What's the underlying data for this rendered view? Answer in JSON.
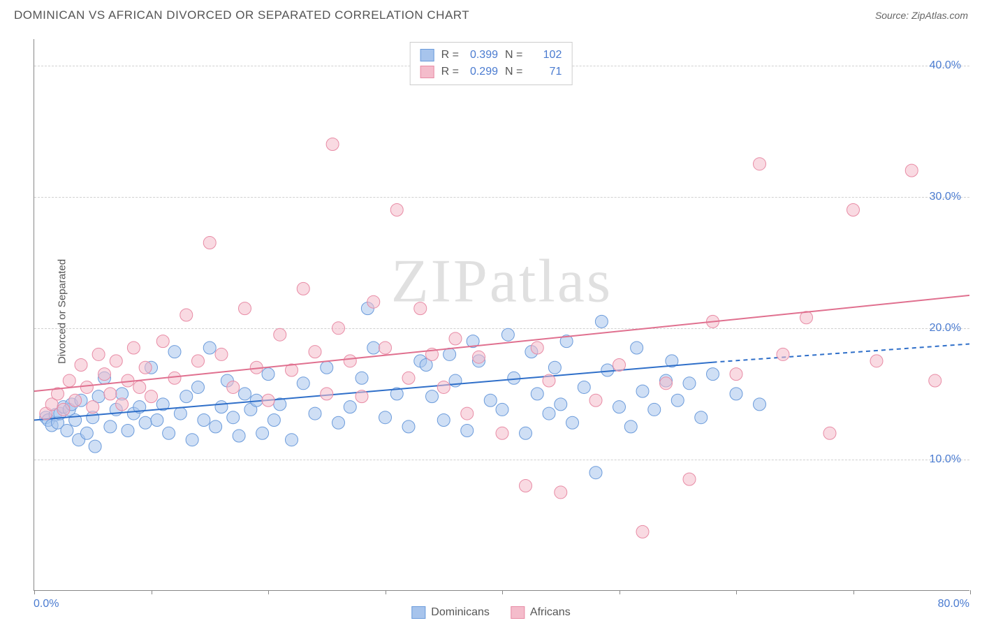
{
  "title": "DOMINICAN VS AFRICAN DIVORCED OR SEPARATED CORRELATION CHART",
  "source_label": "Source: ZipAtlas.com",
  "y_axis_label": "Divorced or Separated",
  "watermark": "ZIPatlas",
  "chart": {
    "type": "scatter",
    "xlim": [
      0,
      80
    ],
    "ylim": [
      0,
      42
    ],
    "x_ticks": [
      0,
      10,
      20,
      30,
      40,
      50,
      60,
      70,
      80
    ],
    "x_tick_labels": {
      "0": "0.0%",
      "80": "80.0%"
    },
    "y_gridlines": [
      10,
      20,
      30,
      40
    ],
    "y_tick_labels": {
      "10": "10.0%",
      "20": "20.0%",
      "30": "30.0%",
      "40": "40.0%"
    },
    "background_color": "#ffffff",
    "grid_color": "#d0d0d0",
    "marker_radius": 9,
    "marker_opacity": 0.55,
    "series": [
      {
        "name": "Dominicans",
        "fill_color": "#a7c4ec",
        "stroke_color": "#6b9bdb",
        "R": "0.399",
        "N": "102",
        "trend": {
          "x1": 0,
          "y1": 13.0,
          "x2": 58,
          "y2": 17.4,
          "dash_to_x": 80,
          "dash_to_y": 18.8,
          "color": "#2f6fc9",
          "width": 2
        },
        "points": [
          [
            1,
            13.2
          ],
          [
            1.2,
            13
          ],
          [
            1.5,
            12.6
          ],
          [
            1.8,
            13.4
          ],
          [
            2,
            12.8
          ],
          [
            2.2,
            13.5
          ],
          [
            2.5,
            14
          ],
          [
            2.8,
            12.2
          ],
          [
            3,
            13.8
          ],
          [
            3.2,
            14.2
          ],
          [
            3.5,
            13
          ],
          [
            3.8,
            11.5
          ],
          [
            4,
            14.5
          ],
          [
            4.5,
            12
          ],
          [
            5,
            13.2
          ],
          [
            5.2,
            11
          ],
          [
            5.5,
            14.8
          ],
          [
            6,
            16.2
          ],
          [
            6.5,
            12.5
          ],
          [
            7,
            13.8
          ],
          [
            7.5,
            15
          ],
          [
            8,
            12.2
          ],
          [
            8.5,
            13.5
          ],
          [
            9,
            14
          ],
          [
            9.5,
            12.8
          ],
          [
            10,
            17
          ],
          [
            10.5,
            13
          ],
          [
            11,
            14.2
          ],
          [
            11.5,
            12
          ],
          [
            12,
            18.2
          ],
          [
            12.5,
            13.5
          ],
          [
            13,
            14.8
          ],
          [
            13.5,
            11.5
          ],
          [
            14,
            15.5
          ],
          [
            14.5,
            13
          ],
          [
            15,
            18.5
          ],
          [
            15.5,
            12.5
          ],
          [
            16,
            14
          ],
          [
            16.5,
            16
          ],
          [
            17,
            13.2
          ],
          [
            17.5,
            11.8
          ],
          [
            18,
            15
          ],
          [
            18.5,
            13.8
          ],
          [
            19,
            14.5
          ],
          [
            19.5,
            12
          ],
          [
            20,
            16.5
          ],
          [
            20.5,
            13
          ],
          [
            21,
            14.2
          ],
          [
            22,
            11.5
          ],
          [
            23,
            15.8
          ],
          [
            24,
            13.5
          ],
          [
            25,
            17
          ],
          [
            26,
            12.8
          ],
          [
            27,
            14
          ],
          [
            28,
            16.2
          ],
          [
            28.5,
            21.5
          ],
          [
            29,
            18.5
          ],
          [
            30,
            13.2
          ],
          [
            31,
            15
          ],
          [
            32,
            12.5
          ],
          [
            33,
            17.5
          ],
          [
            33.5,
            17.2
          ],
          [
            34,
            14.8
          ],
          [
            35,
            13
          ],
          [
            35.5,
            18
          ],
          [
            36,
            16
          ],
          [
            37,
            12.2
          ],
          [
            37.5,
            19
          ],
          [
            38,
            17.5
          ],
          [
            39,
            14.5
          ],
          [
            40,
            13.8
          ],
          [
            40.5,
            19.5
          ],
          [
            41,
            16.2
          ],
          [
            42,
            12
          ],
          [
            42.5,
            18.2
          ],
          [
            43,
            15
          ],
          [
            44,
            13.5
          ],
          [
            44.5,
            17
          ],
          [
            45,
            14.2
          ],
          [
            45.5,
            19
          ],
          [
            46,
            12.8
          ],
          [
            47,
            15.5
          ],
          [
            48,
            9
          ],
          [
            48.5,
            20.5
          ],
          [
            49,
            16.8
          ],
          [
            50,
            14
          ],
          [
            51,
            12.5
          ],
          [
            51.5,
            18.5
          ],
          [
            52,
            15.2
          ],
          [
            53,
            13.8
          ],
          [
            54,
            16
          ],
          [
            54.5,
            17.5
          ],
          [
            55,
            14.5
          ],
          [
            56,
            15.8
          ],
          [
            57,
            13.2
          ],
          [
            58,
            16.5
          ],
          [
            60,
            15
          ],
          [
            62,
            14.2
          ]
        ]
      },
      {
        "name": "Africans",
        "fill_color": "#f4bccb",
        "stroke_color": "#e88ba5",
        "R": "0.299",
        "N": "71",
        "trend": {
          "x1": 0,
          "y1": 15.2,
          "x2": 80,
          "y2": 22.5,
          "color": "#e0708f",
          "width": 2
        },
        "points": [
          [
            1,
            13.5
          ],
          [
            1.5,
            14.2
          ],
          [
            2,
            15
          ],
          [
            2.5,
            13.8
          ],
          [
            3,
            16
          ],
          [
            3.5,
            14.5
          ],
          [
            4,
            17.2
          ],
          [
            4.5,
            15.5
          ],
          [
            5,
            14
          ],
          [
            5.5,
            18
          ],
          [
            6,
            16.5
          ],
          [
            6.5,
            15
          ],
          [
            7,
            17.5
          ],
          [
            7.5,
            14.2
          ],
          [
            8,
            16
          ],
          [
            8.5,
            18.5
          ],
          [
            9,
            15.5
          ],
          [
            9.5,
            17
          ],
          [
            10,
            14.8
          ],
          [
            11,
            19
          ],
          [
            12,
            16.2
          ],
          [
            13,
            21
          ],
          [
            14,
            17.5
          ],
          [
            15,
            26.5
          ],
          [
            16,
            18
          ],
          [
            17,
            15.5
          ],
          [
            18,
            21.5
          ],
          [
            19,
            17
          ],
          [
            20,
            14.5
          ],
          [
            21,
            19.5
          ],
          [
            22,
            16.8
          ],
          [
            23,
            23
          ],
          [
            24,
            18.2
          ],
          [
            25,
            15
          ],
          [
            25.5,
            34
          ],
          [
            26,
            20
          ],
          [
            27,
            17.5
          ],
          [
            28,
            14.8
          ],
          [
            29,
            22
          ],
          [
            30,
            18.5
          ],
          [
            31,
            29
          ],
          [
            32,
            16.2
          ],
          [
            33,
            21.5
          ],
          [
            34,
            18
          ],
          [
            35,
            15.5
          ],
          [
            36,
            19.2
          ],
          [
            37,
            13.5
          ],
          [
            38,
            17.8
          ],
          [
            40,
            12
          ],
          [
            42,
            8
          ],
          [
            43,
            18.5
          ],
          [
            44,
            16
          ],
          [
            45,
            7.5
          ],
          [
            48,
            14.5
          ],
          [
            50,
            17.2
          ],
          [
            52,
            4.5
          ],
          [
            54,
            15.8
          ],
          [
            56,
            8.5
          ],
          [
            58,
            20.5
          ],
          [
            60,
            16.5
          ],
          [
            62,
            32.5
          ],
          [
            64,
            18
          ],
          [
            66,
            20.8
          ],
          [
            68,
            12
          ],
          [
            70,
            29
          ],
          [
            72,
            17.5
          ],
          [
            75,
            32
          ],
          [
            77,
            16
          ]
        ]
      }
    ]
  },
  "legend_bottom": [
    {
      "label": "Dominicans",
      "fill": "#a7c4ec",
      "stroke": "#6b9bdb"
    },
    {
      "label": "Africans",
      "fill": "#f4bccb",
      "stroke": "#e88ba5"
    }
  ]
}
